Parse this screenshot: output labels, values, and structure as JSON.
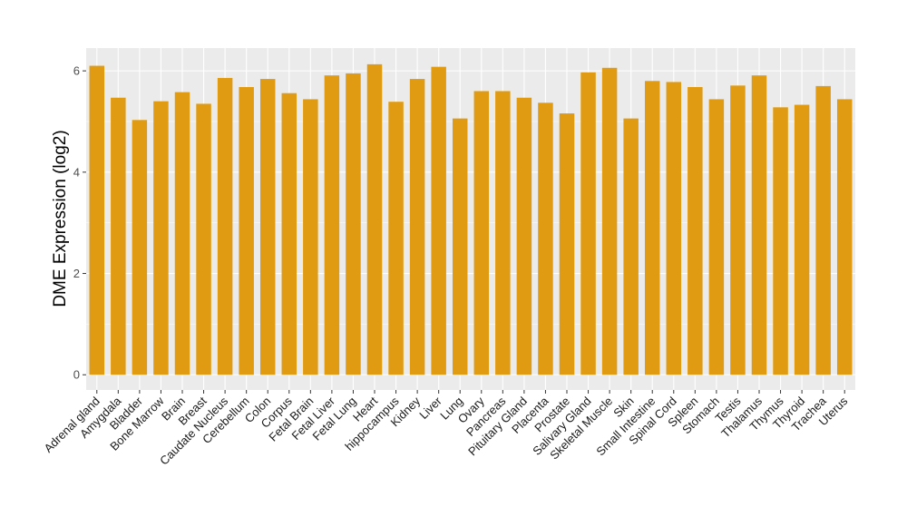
{
  "chart_data": {
    "type": "bar",
    "title": "",
    "xlabel": "",
    "ylabel": "DME Expression (log2)",
    "ylim": [
      -0.3,
      6.45
    ],
    "yticks": [
      0,
      2,
      4,
      6
    ],
    "ytick_labels": [
      "0",
      "2",
      "4",
      "6"
    ],
    "grid": true,
    "legend": "none",
    "bar_color": "#E09B12",
    "categories": [
      "Adrenal gland",
      "Amygdala",
      "Bladder",
      "Bone Marrow",
      "Brain",
      "Breast",
      "Caudate Nucleus",
      "Cerebellum",
      "Colon",
      "Corpus",
      "Fetal Brain",
      "Fetal Liver",
      "Fetal Lung",
      "Heart",
      "hippocampus",
      "Kidney",
      "Liver",
      "Lung",
      "Ovary",
      "Pancreas",
      "Pituitary Gland",
      "Placenta",
      "Prostate",
      "Salivary Gland",
      "Skeletal Muscle",
      "Skin",
      "Small Intestine",
      "Spinal Cord",
      "Spleen",
      "Stomach",
      "Testis",
      "Thalamus",
      "Thymus",
      "Thyroid",
      "Trachea",
      "Uterus"
    ],
    "values": [
      6.1,
      5.47,
      5.03,
      5.4,
      5.58,
      5.35,
      5.86,
      5.68,
      5.84,
      5.56,
      5.44,
      5.91,
      5.95,
      6.13,
      5.39,
      5.84,
      6.08,
      5.06,
      5.6,
      5.6,
      5.47,
      5.37,
      5.16,
      5.97,
      6.06,
      5.06,
      5.8,
      5.78,
      5.68,
      5.44,
      5.71,
      5.91,
      5.28,
      5.33,
      5.7,
      5.44
    ]
  }
}
